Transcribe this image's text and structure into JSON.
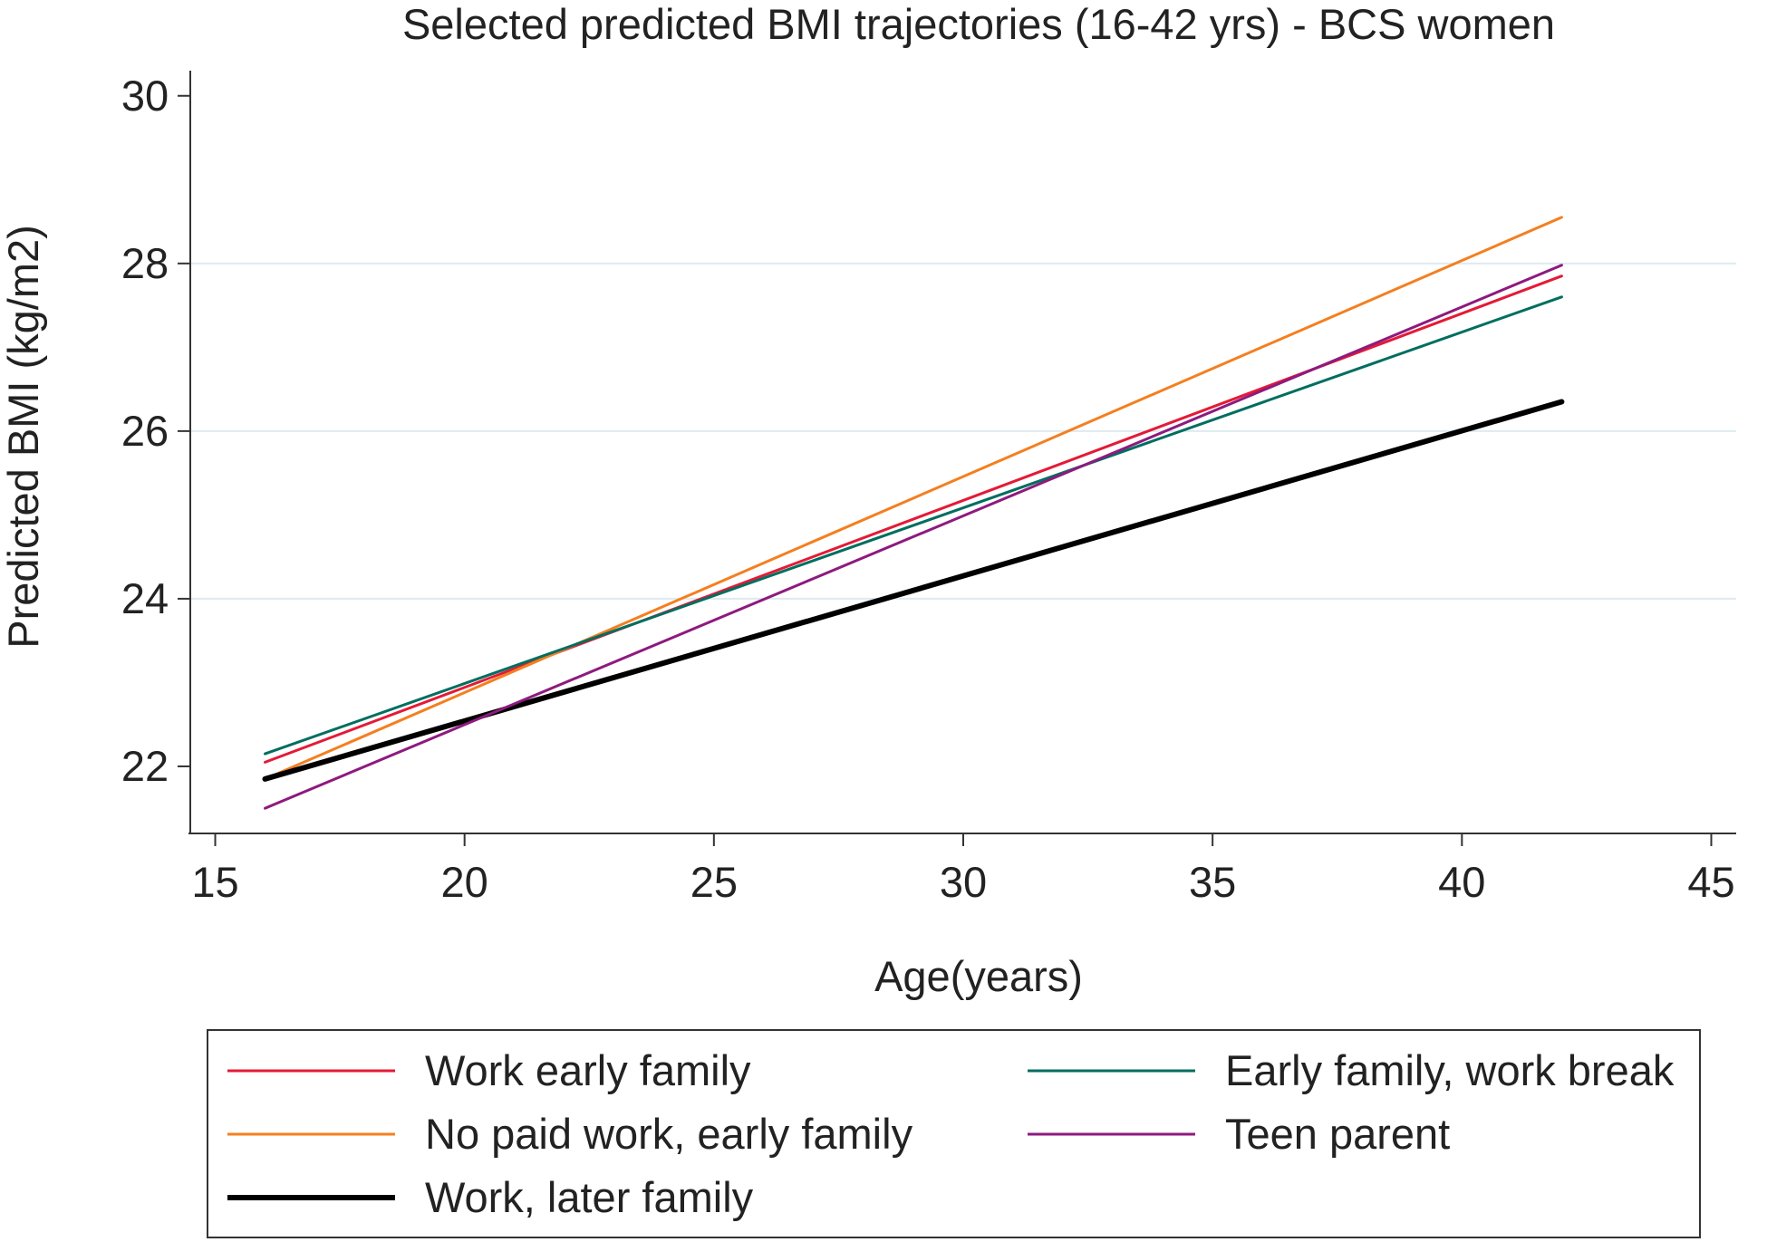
{
  "chart_data": {
    "type": "line",
    "title": "Selected predicted BMI trajectories (16-42 yrs) - BCS women",
    "xlabel": "Age(years)",
    "ylabel": "Predicted BMI (kg/m2)",
    "xlim": [
      14.5,
      45.5
    ],
    "ylim": [
      21.2,
      30.3
    ],
    "xticks": [
      15,
      20,
      25,
      30,
      35,
      40,
      45
    ],
    "yticks": [
      22,
      24,
      26,
      28,
      30
    ],
    "grid": {
      "horizontal": true,
      "vertical": false
    },
    "legend": {
      "position": "bottom",
      "columns": 2
    },
    "series": [
      {
        "name": "Work early family",
        "color": "#e41a36",
        "width": 3,
        "x": [
          16,
          42
        ],
        "y": [
          22.05,
          27.85
        ]
      },
      {
        "name": "No paid work, early family",
        "color": "#f47f20",
        "width": 3,
        "x": [
          16,
          42
        ],
        "y": [
          21.85,
          28.55
        ]
      },
      {
        "name": "Work, later family",
        "color": "#000000",
        "width": 6,
        "x": [
          16,
          42
        ],
        "y": [
          21.85,
          26.35
        ]
      },
      {
        "name": "Early family, work break",
        "color": "#006e5f",
        "width": 3,
        "x": [
          16,
          42
        ],
        "y": [
          22.15,
          27.6
        ]
      },
      {
        "name": "Teen parent",
        "color": "#8e1a7e",
        "width": 3,
        "x": [
          16,
          42
        ],
        "y": [
          21.5,
          27.98
        ]
      }
    ]
  }
}
